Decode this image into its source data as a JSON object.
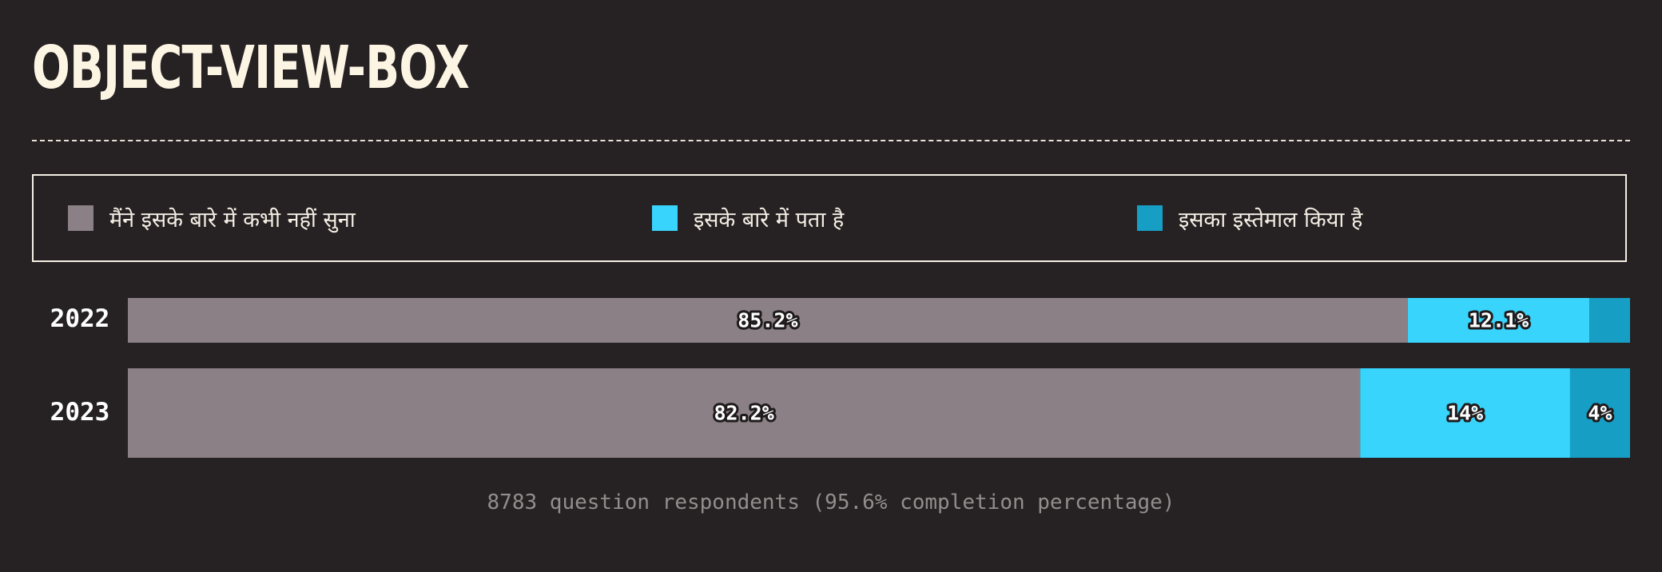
{
  "title": "OBJECT-VIEW-BOX",
  "footnote": "8783 question respondents (95.6% completion percentage)",
  "colors": {
    "background": "#262223",
    "never_heard": "#8b8085",
    "know_about": "#38d4fc",
    "used": "#179ec4"
  },
  "legend": {
    "items": [
      {
        "label": "मैंने इसके बारे में कभी नहीं सुना",
        "color": "#8b8085"
      },
      {
        "label": "इसके बारे में पता है",
        "color": "#38d4fc"
      },
      {
        "label": "इसका इस्तेमाल किया है",
        "color": "#179ec4"
      }
    ]
  },
  "chart_data": {
    "type": "bar",
    "orientation": "horizontal",
    "stacked": true,
    "title": "OBJECT-VIEW-BOX",
    "categories": [
      "2022",
      "2023"
    ],
    "series": [
      {
        "name": "मैंने इसके बारे में कभी नहीं सुना",
        "values": [
          85.2,
          82.2
        ],
        "labels": [
          "85.2%",
          "82.2%"
        ]
      },
      {
        "name": "इसके बारे में पता है",
        "values": [
          12.1,
          14
        ],
        "labels": [
          "12.1%",
          "14%"
        ]
      },
      {
        "name": "इसका इस्तेमाल किया है",
        "values": [
          2.7,
          4
        ],
        "labels": [
          "",
          "4%"
        ]
      }
    ],
    "xlim": [
      0,
      100
    ],
    "legend_position": "top",
    "grid": false
  }
}
